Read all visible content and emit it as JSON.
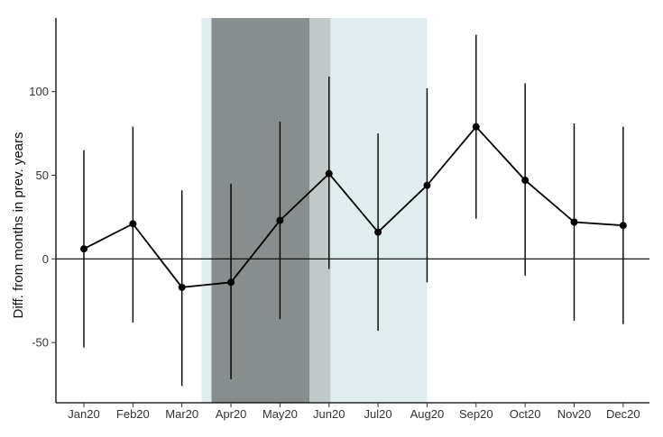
{
  "chart_data": {
    "type": "line",
    "title": "",
    "xlabel": "",
    "ylabel": "Diff. from months in prev. years",
    "categories": [
      "Jan20",
      "Feb20",
      "Mar20",
      "Apr20",
      "May20",
      "Jun20",
      "Jul20",
      "Aug20",
      "Sep20",
      "Oct20",
      "Nov20",
      "Dec20"
    ],
    "series": [
      {
        "values": [
          6,
          21,
          -17,
          -14,
          23,
          51,
          16,
          44,
          79,
          47,
          22,
          20
        ],
        "lower": [
          -53,
          -38,
          -76,
          -72,
          -36,
          -6,
          -43,
          -14,
          24,
          -10,
          -37,
          -39
        ],
        "upper": [
          65,
          79,
          41,
          45,
          82,
          109,
          75,
          102,
          134,
          105,
          81,
          79
        ]
      }
    ],
    "yticks": [
      -50,
      0,
      50,
      100
    ],
    "ytick_labels": [
      "-50",
      "0",
      "50",
      "100"
    ],
    "ylim": [
      -86,
      144
    ],
    "reference_line": 0,
    "grid": false,
    "legend": "none",
    "shaded_periods": [
      {
        "from_index": 2.6,
        "to_index": 4.6,
        "color": "#888d8d"
      },
      {
        "from_index": 4.6,
        "to_index": 5.03,
        "color": "#c1c8c8"
      },
      {
        "from_index": 2.4,
        "to_index": 2.6,
        "color": "#e0eced"
      },
      {
        "from_index": 5.03,
        "to_index": 7.0,
        "color": "#e0eced"
      }
    ],
    "line_color": "#000000",
    "marker_color": "#000000",
    "errorbar_color": "#000000"
  }
}
